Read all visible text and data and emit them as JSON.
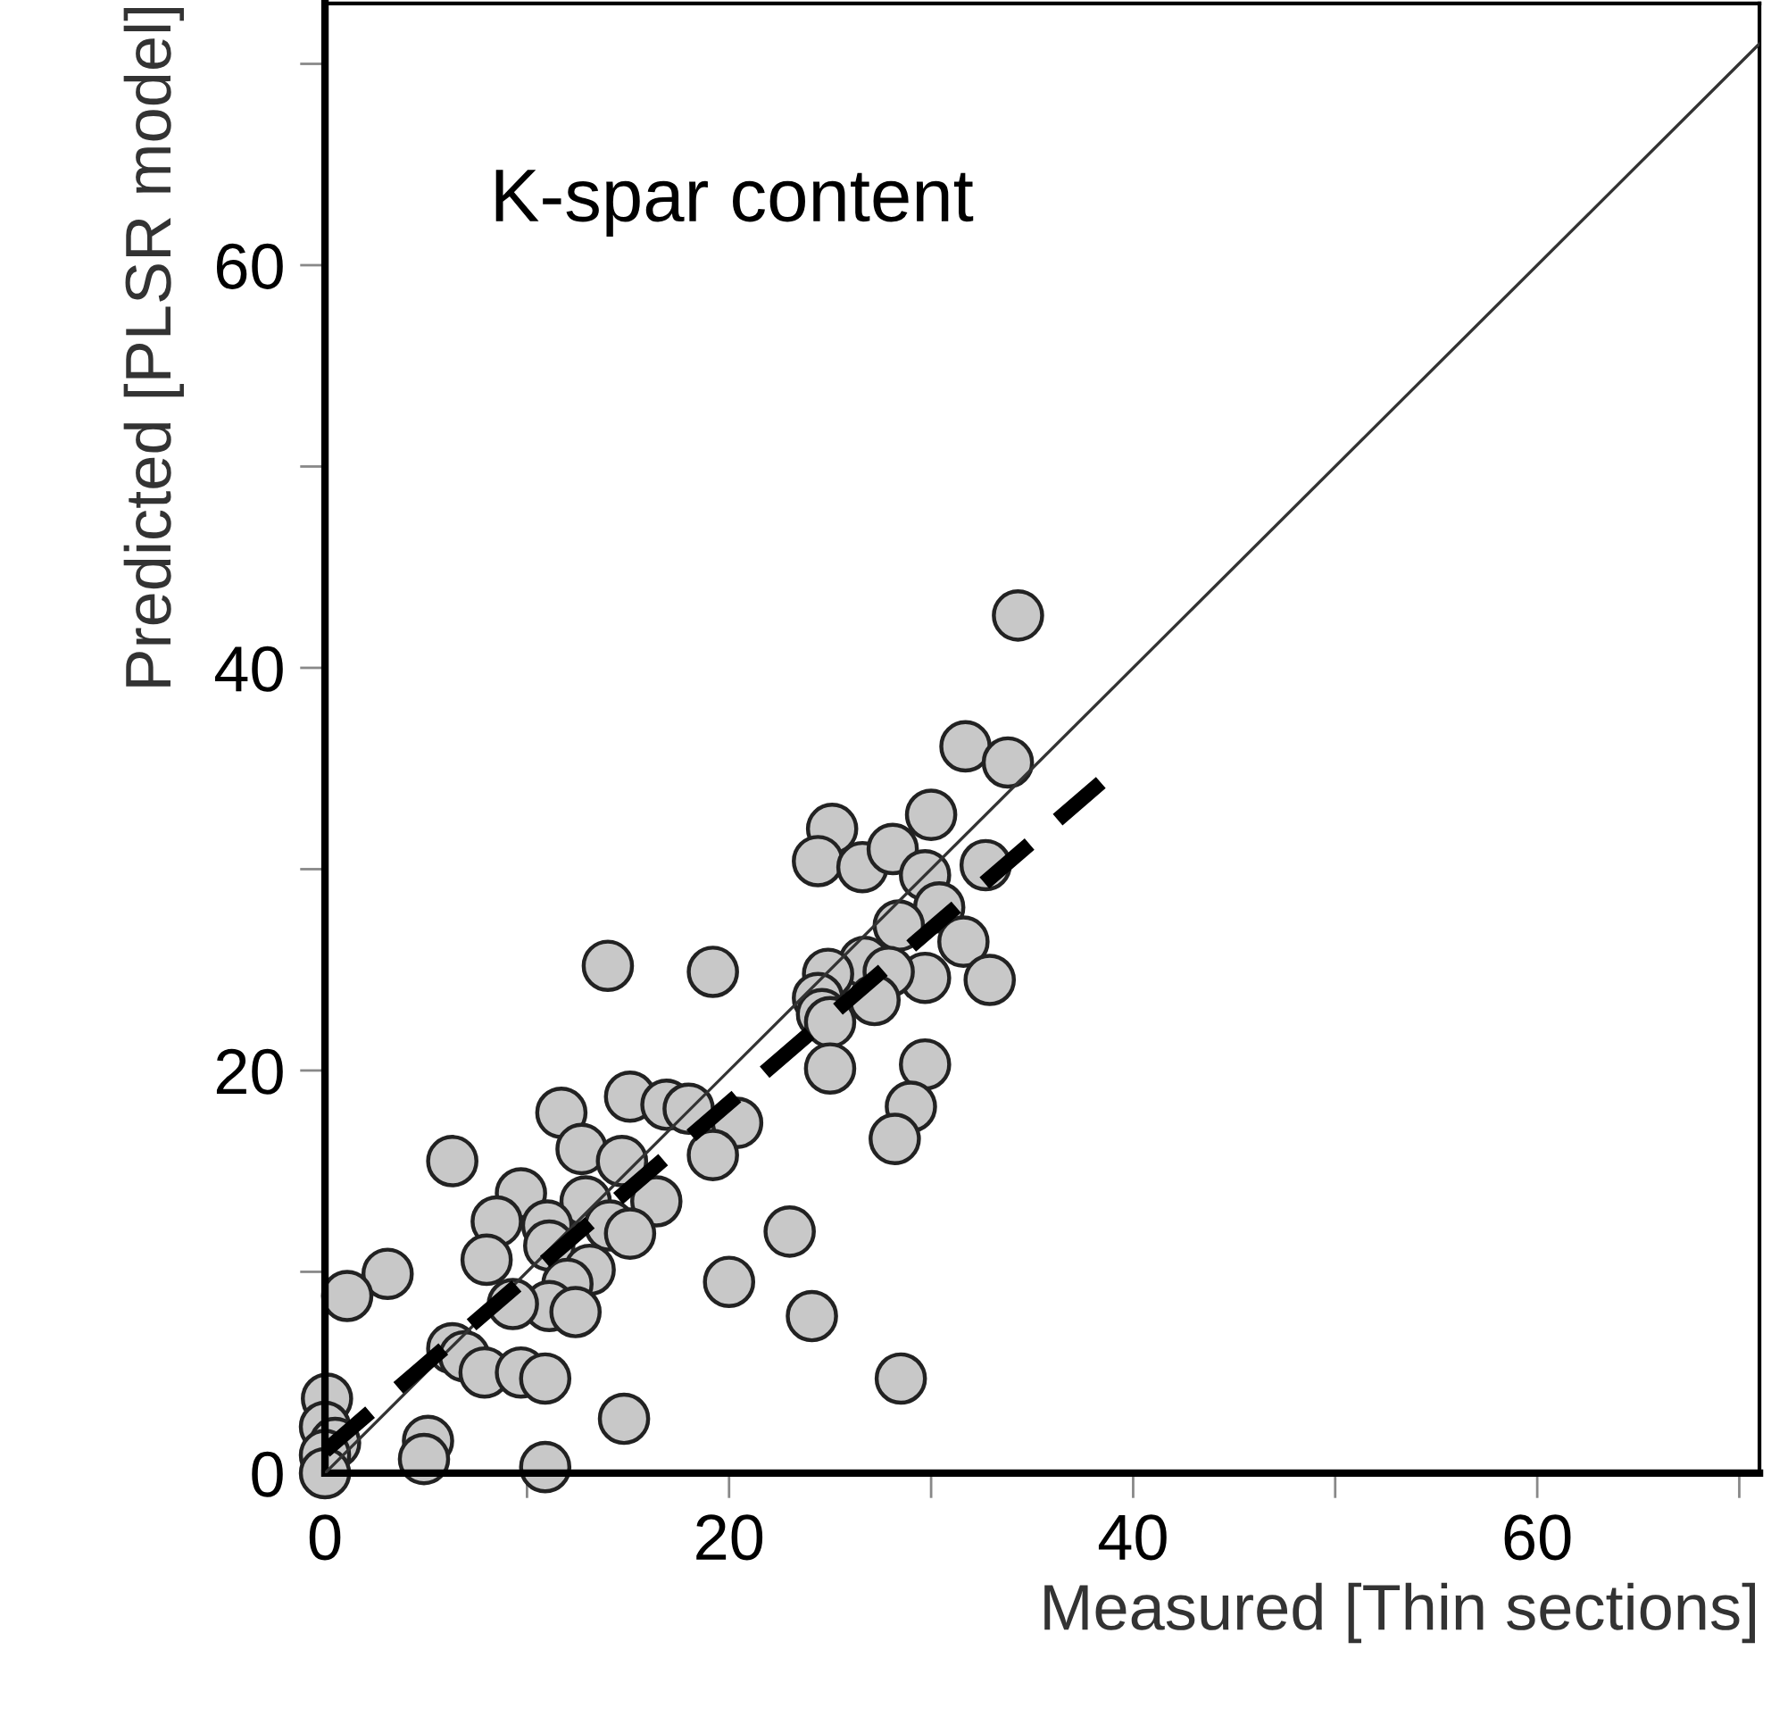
{
  "chart_data": {
    "type": "scatter",
    "xlabel": "Measured [Thin sections]",
    "ylabel": "Predicted [PLSR model]",
    "annotations": [
      "K-spar content"
    ],
    "xlim": [
      0,
      71
    ],
    "ylim": [
      0,
      73
    ],
    "xticks": [
      0,
      {
        "value": 10,
        "label": null
      },
      20,
      {
        "value": 30,
        "label": null
      },
      40,
      {
        "value": 50,
        "label": null
      },
      60,
      {
        "value": 70,
        "label": null
      }
    ],
    "yticks": [
      0,
      {
        "value": 10,
        "label": null
      },
      20,
      {
        "value": 30,
        "label": null
      },
      40,
      {
        "value": 50,
        "label": null
      },
      60,
      {
        "value": 70,
        "label": null
      }
    ],
    "grid": false,
    "legend": false,
    "series": [
      {
        "type": "line",
        "color": "#333333",
        "line_style": "solid",
        "marker": "none",
        "x": [
          0,
          71
        ],
        "values": [
          0,
          71
        ]
      },
      {
        "type": "line",
        "color": "#000000",
        "line_style": "dashed",
        "marker": "none",
        "x": [
          0,
          38.4
        ],
        "values": [
          1.1,
          34.3
        ]
      },
      {
        "color": "#c8c8c8",
        "marker": "circle",
        "x": [
          34.3,
          31.7,
          33.8,
          30.0,
          25.1,
          24.4,
          26.6,
          28.1,
          29.7,
          32.7,
          30.4,
          28.4,
          31.6,
          32.9,
          29.7,
          26.7,
          27.9,
          24.9,
          24.4,
          27.2,
          24.6,
          25.0,
          25.0,
          29.7,
          29.0,
          19.2,
          28.2,
          20.4,
          19.2,
          24.1,
          23.0,
          28.5,
          11.7,
          15.1,
          16.9,
          18.0,
          12.7,
          6.3,
          14.7,
          9.7,
          12.9,
          16.4,
          8.5,
          11.0,
          14.1,
          15.1,
          11.1,
          3.1,
          1.1,
          8.0,
          13.1,
          12.0,
          11.1,
          12.4,
          9.3,
          20.0,
          6.3,
          6.9,
          7.9,
          9.7,
          10.9,
          14.8,
          10.9,
          5.1,
          4.9,
          0.1,
          0.0,
          0.5,
          0.0,
          0.0,
          14.0
        ],
        "values": [
          42.6,
          36.1,
          35.3,
          32.7,
          32.0,
          30.4,
          30.1,
          31.0,
          29.7,
          30.2,
          28.1,
          27.2,
          26.4,
          24.5,
          24.6,
          25.4,
          24.9,
          24.8,
          23.6,
          23.5,
          22.8,
          22.4,
          20.1,
          20.3,
          18.2,
          24.9,
          16.6,
          17.4,
          15.8,
          7.8,
          12.0,
          4.7,
          17.9,
          18.7,
          18.3,
          18.1,
          16.1,
          15.5,
          15.5,
          13.9,
          13.5,
          13.5,
          12.5,
          12.3,
          12.3,
          11.9,
          11.3,
          9.9,
          8.8,
          10.6,
          10.1,
          9.4,
          8.3,
          8.0,
          8.4,
          9.5,
          6.2,
          5.8,
          5.0,
          5.0,
          4.7,
          2.7,
          0.3,
          1.6,
          0.7,
          3.7,
          2.3,
          1.5,
          0.9,
          0.0,
          25.2
        ]
      }
    ]
  }
}
